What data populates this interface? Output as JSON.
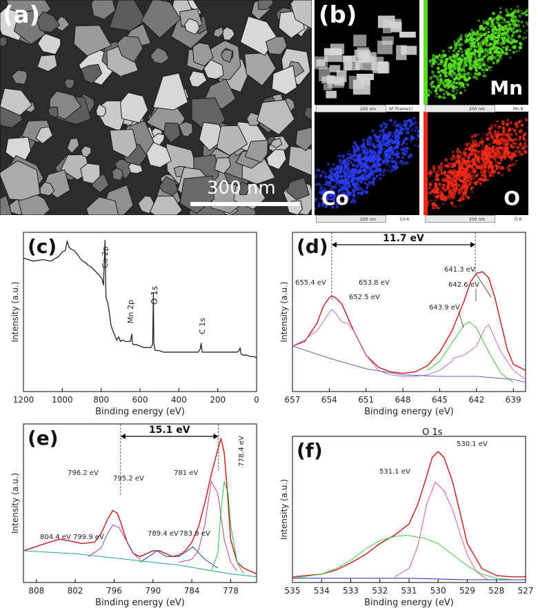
{
  "panel_a": {
    "label": "(a)",
    "scale_bar_text": "300 nm"
  },
  "panel_b": {
    "label": "(b)",
    "maps": [
      {
        "element": "",
        "color": "#d8d8d8",
        "caption_left": "200 nm",
        "caption_right": "bf (frame1)"
      },
      {
        "element": "Mn",
        "color": "#58e020",
        "caption_left": "200 nm",
        "caption_right": "Mn K"
      },
      {
        "element": "Co",
        "color": "#2a3cf0",
        "caption_left": "200 nm",
        "caption_right": "Co K"
      },
      {
        "element": "O",
        "color": "#f02a1a",
        "caption_left": "200 nm",
        "caption_right": "O K"
      }
    ]
  },
  "chart_data": [
    {
      "panel": "(c)",
      "type": "line",
      "xlabel": "Binding energy (eV)",
      "ylabel": "Intensity (a.u.)",
      "xlim": [
        1200,
        0
      ],
      "xticks": [
        1200,
        1000,
        800,
        600,
        400,
        200,
        0
      ],
      "annotations": [
        {
          "text": "Co 2p",
          "x": 780
        },
        {
          "text": "Mn 2p",
          "x": 642
        },
        {
          "text": "O 1s",
          "x": 530
        },
        {
          "text": "C 1s",
          "x": 285
        }
      ],
      "series": [
        {
          "color": "#222222",
          "x": [
            1200,
            1150,
            1100,
            1060,
            1020,
            1000,
            985,
            975,
            965,
            955,
            940,
            925,
            910,
            895,
            880,
            865,
            850,
            835,
            820,
            805,
            795,
            788,
            782,
            780,
            778,
            775,
            770,
            765,
            760,
            750,
            740,
            730,
            720,
            710,
            700,
            690,
            675,
            660,
            650,
            645,
            642,
            640,
            636,
            620,
            600,
            580,
            560,
            545,
            535,
            531,
            529,
            526,
            520,
            500,
            480,
            450,
            420,
            390,
            360,
            330,
            300,
            290,
            285,
            282,
            280,
            260,
            240,
            220,
            200,
            180,
            160,
            140,
            120,
            100,
            90,
            85,
            80,
            70,
            50,
            30,
            10,
            0
          ],
          "y": [
            88,
            86,
            87,
            86,
            89,
            92,
            93,
            99,
            95,
            94,
            93,
            91,
            88,
            86,
            85,
            83,
            82,
            80,
            78,
            76,
            74,
            70,
            92,
            100,
            80,
            62,
            60,
            58,
            54,
            44,
            40,
            37,
            34,
            36,
            33,
            34,
            33,
            33,
            33,
            36,
            38,
            33,
            31,
            31,
            30,
            29,
            29,
            29,
            31,
            65,
            33,
            29,
            27,
            27,
            26,
            26,
            26,
            26,
            26,
            26,
            26,
            28,
            32,
            28,
            26,
            26,
            26,
            26,
            26,
            26,
            26,
            26,
            26,
            26,
            27,
            29,
            25,
            24,
            24,
            23,
            23,
            22
          ]
        }
      ]
    },
    {
      "panel": "(d)",
      "type": "line",
      "xlabel": "Binding energy (eV)",
      "ylabel": "Intensity (a.u.)",
      "xlim": [
        657,
        638
      ],
      "xticks": [
        657,
        654,
        651,
        648,
        645,
        642,
        639
      ],
      "bracket": {
        "x1": 653.8,
        "x2": 642.1,
        "label": "11.7 eV"
      },
      "annotations": [
        {
          "text": "655.4 eV",
          "x": 655.4
        },
        {
          "text": "653.8 eV",
          "x": 653.8
        },
        {
          "text": "652.5 eV",
          "x": 652.5
        },
        {
          "text": "641.3 eV",
          "x": 641.3
        },
        {
          "text": "642.6 eV",
          "x": 642.6
        },
        {
          "text": "643.9 eV",
          "x": 643.9
        }
      ],
      "series": [
        {
          "color": "#000000",
          "x": [
            657,
            656,
            655,
            654.5,
            654,
            653.8,
            653.5,
            653,
            652,
            651,
            650,
            649,
            648,
            647,
            646,
            645,
            644,
            643,
            642.5,
            642,
            641.5,
            641,
            640.5,
            640,
            639.5,
            639,
            638
          ],
          "y": [
            30,
            33,
            45,
            56,
            62,
            63,
            62,
            58,
            40,
            24,
            16,
            13,
            12,
            13,
            17,
            26,
            40,
            60,
            72,
            78,
            79,
            75,
            62,
            45,
            28,
            18,
            14
          ]
        },
        {
          "color": "#e02020",
          "x": [
            657,
            656,
            655,
            654.5,
            654,
            653.8,
            653.5,
            653,
            652,
            651,
            650,
            649,
            648,
            647,
            646,
            645,
            644,
            643,
            642.5,
            642,
            641.5,
            641,
            640.5,
            640,
            639.5,
            639,
            638
          ],
          "y": [
            30,
            33,
            45,
            56,
            62,
            63,
            62,
            58,
            40,
            24,
            16,
            13,
            12,
            13,
            17,
            26,
            40,
            60,
            72,
            78,
            79,
            75,
            62,
            45,
            28,
            18,
            14
          ]
        },
        {
          "color": "#c06ac0",
          "x": [
            657,
            656,
            655.4,
            655,
            654,
            653.8,
            653.5,
            653,
            652.5,
            652,
            651,
            650,
            649,
            648,
            647,
            646,
            645,
            644,
            643.9,
            643,
            642,
            641.3,
            641,
            640,
            639,
            638
          ],
          "y": [
            30,
            34,
            38,
            40,
            52,
            54,
            52,
            46,
            45,
            40,
            24,
            14,
            11,
            10,
            10,
            11,
            14,
            20,
            22,
            24,
            30,
            42,
            44,
            26,
            14,
            8
          ]
        },
        {
          "color": "#40c040",
          "x": [
            646,
            645,
            644,
            643,
            642.6,
            642,
            641,
            640,
            639
          ],
          "y": [
            14,
            20,
            32,
            44,
            46,
            42,
            26,
            12,
            6
          ]
        },
        {
          "color": "#6060c0",
          "x": [
            657,
            654,
            651,
            648,
            645,
            642,
            639,
            638
          ],
          "y": [
            30,
            22,
            15,
            11,
            10,
            10,
            8,
            6
          ]
        }
      ]
    },
    {
      "panel": "(e)",
      "type": "line",
      "xlabel": "Binding energy (eV)",
      "ylabel": "Intensity (a.u.)",
      "xlim": [
        810,
        774
      ],
      "xticks": [
        808,
        802,
        796,
        790,
        784,
        778
      ],
      "bracket": {
        "x1": 795.0,
        "x2": 779.9,
        "label": "15.1 eV"
      },
      "annotations": [
        {
          "text": "796.2 eV",
          "x": 796.2
        },
        {
          "text": "795.2 eV",
          "x": 795.2
        },
        {
          "text": "781 eV",
          "x": 781
        },
        {
          "text": "778.4 eV",
          "x": 778.4
        },
        {
          "text": "804.4 eV",
          "x": 804.4
        },
        {
          "text": "799.9 eV",
          "x": 799.9
        },
        {
          "text": "789.4 eV",
          "x": 789.4
        },
        {
          "text": "783.9 eV",
          "x": 783.9
        }
      ],
      "series": [
        {
          "color": "#000000",
          "x": [
            810,
            808,
            806,
            804.4,
            803,
            801,
            799,
            798,
            797,
            796.2,
            795.5,
            795,
            794,
            793,
            792,
            791,
            790,
            789,
            788,
            787,
            786,
            785,
            784,
            783,
            782,
            781,
            780,
            779.5,
            779,
            778.5,
            778,
            777,
            776,
            775,
            774
          ],
          "y": [
            22,
            25,
            28,
            30,
            29,
            27,
            28,
            34,
            44,
            50,
            48,
            42,
            28,
            20,
            18,
            20,
            22,
            22,
            20,
            18,
            19,
            22,
            28,
            38,
            55,
            75,
            92,
            100,
            90,
            62,
            30,
            14,
            10,
            8,
            6
          ]
        },
        {
          "color": "#e02020",
          "x": [
            810,
            808,
            806,
            804.4,
            803,
            801,
            799,
            798,
            797,
            796.2,
            795.5,
            795,
            794,
            793,
            792,
            791,
            790,
            789,
            788,
            787,
            786,
            785,
            784,
            783,
            782,
            781,
            780,
            779.5,
            779,
            778.5,
            778,
            777,
            776,
            775,
            774
          ],
          "y": [
            22,
            25,
            28,
            30,
            29,
            27,
            28,
            34,
            44,
            50,
            48,
            42,
            28,
            20,
            18,
            20,
            22,
            22,
            20,
            18,
            19,
            22,
            28,
            38,
            55,
            75,
            92,
            100,
            90,
            62,
            30,
            14,
            10,
            8,
            6
          ]
        },
        {
          "color": "#a040a0",
          "x": [
            800,
            798,
            797,
            796.2,
            795.2,
            794,
            793,
            792
          ],
          "y": [
            18,
            24,
            34,
            40,
            38,
            28,
            20,
            16
          ]
        },
        {
          "color": "#c04080",
          "x": [
            786,
            784,
            783,
            782,
            781,
            780,
            779,
            778,
            777
          ],
          "y": [
            14,
            16,
            22,
            40,
            70,
            62,
            30,
            14,
            8
          ]
        },
        {
          "color": "#20c040",
          "x": [
            781,
            780,
            779.5,
            779,
            778.4,
            778,
            777,
            776
          ],
          "y": [
            8,
            20,
            50,
            70,
            62,
            40,
            14,
            6
          ]
        },
        {
          "color": "#2040c0",
          "x": [
            792,
            790,
            789.4,
            788,
            786,
            784,
            783.9,
            782,
            780
          ],
          "y": [
            14,
            20,
            22,
            18,
            18,
            24,
            25,
            16,
            10
          ]
        },
        {
          "color": "#20a0a0",
          "x": [
            810,
            806,
            802,
            798,
            794,
            790,
            786,
            782,
            778,
            774
          ],
          "y": [
            22,
            21,
            20,
            18,
            16,
            14,
            12,
            9,
            6,
            4
          ]
        }
      ]
    },
    {
      "panel": "(f)",
      "type": "line",
      "title": "O 1s",
      "xlabel": "Binding energy (eV)",
      "ylabel": "Intensity (a.u.)",
      "xlim": [
        535,
        527
      ],
      "xticks": [
        535,
        534,
        533,
        532,
        531,
        530,
        529,
        528,
        527
      ],
      "annotations": [
        {
          "text": "530.1 eV",
          "x": 530.1
        },
        {
          "text": "531.1 eV",
          "x": 531.1
        }
      ],
      "series": [
        {
          "color": "#000000",
          "x": [
            535,
            534,
            533.5,
            533,
            532.5,
            532,
            531.5,
            531,
            530.7,
            530.4,
            530.2,
            530,
            529.8,
            529.5,
            529.2,
            529,
            528.5,
            528,
            527.5,
            527
          ],
          "y": [
            4,
            6,
            9,
            14,
            20,
            28,
            34,
            42,
            56,
            76,
            90,
            94,
            90,
            72,
            46,
            28,
            10,
            5,
            4,
            4
          ]
        },
        {
          "color": "#e02020",
          "x": [
            535,
            534,
            533.5,
            533,
            532.5,
            532,
            531.5,
            531,
            530.7,
            530.4,
            530.2,
            530,
            529.8,
            529.5,
            529.2,
            529,
            528.5,
            528,
            527.5,
            527
          ],
          "y": [
            4,
            6,
            9,
            14,
            20,
            28,
            34,
            42,
            56,
            76,
            90,
            94,
            90,
            72,
            46,
            28,
            10,
            5,
            4,
            4
          ]
        },
        {
          "color": "#e050a0",
          "x": [
            531.5,
            531,
            530.7,
            530.4,
            530.1,
            529.8,
            529.5,
            529.2,
            529,
            528.7,
            528.3
          ],
          "y": [
            4,
            10,
            26,
            56,
            72,
            66,
            52,
            32,
            20,
            8,
            2
          ]
        },
        {
          "color": "#40d040",
          "x": [
            535,
            534,
            533.5,
            533,
            532.5,
            532,
            531.5,
            531.1,
            530.5,
            530,
            529.5,
            529,
            528.5,
            528,
            527.5,
            527
          ],
          "y": [
            3,
            6,
            10,
            16,
            24,
            30,
            33,
            34,
            32,
            28,
            20,
            12,
            6,
            3,
            2,
            2
          ]
        },
        {
          "color": "#2020c0",
          "x": [
            535,
            533,
            531,
            529,
            527
          ],
          "y": [
            3,
            3,
            3,
            2,
            2
          ]
        }
      ]
    }
  ]
}
